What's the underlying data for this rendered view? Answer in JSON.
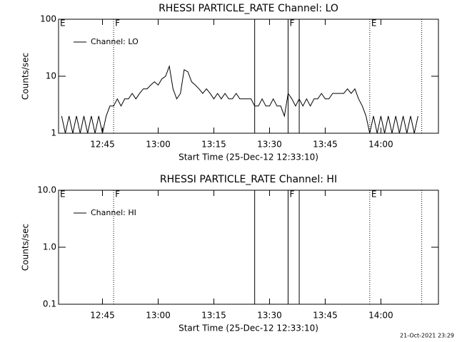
{
  "chart_data": [
    {
      "type": "line",
      "title": "RHESSI PARTICLE_RATE Channel: LO",
      "x_label": "Start Time (25-Dec-12 12:33:10)",
      "y_label": "Counts/sec",
      "log_y": true,
      "ylim": [
        1,
        100
      ],
      "yticks": [
        1,
        10,
        100
      ],
      "xlim": [
        "12:33:10",
        "14:15:30"
      ],
      "xticks": [
        "12:45",
        "13:00",
        "13:15",
        "13:30",
        "13:45",
        "14:00"
      ],
      "x": [
        "12:34",
        "12:35",
        "12:36",
        "12:37",
        "12:38",
        "12:39",
        "12:40",
        "12:41",
        "12:42",
        "12:43",
        "12:44",
        "12:45",
        "12:46",
        "12:47",
        "12:48",
        "12:49",
        "12:50",
        "12:51",
        "12:52",
        "12:53",
        "12:54",
        "12:55",
        "12:56",
        "12:57",
        "12:58",
        "12:59",
        "13:00",
        "13:01",
        "13:02",
        "13:03",
        "13:04",
        "13:05",
        "13:06",
        "13:07",
        "13:08",
        "13:09",
        "13:10",
        "13:11",
        "13:12",
        "13:13",
        "13:14",
        "13:15",
        "13:16",
        "13:17",
        "13:18",
        "13:19",
        "13:20",
        "13:21",
        "13:22",
        "13:23",
        "13:24",
        "13:25",
        "13:26",
        "13:27",
        "13:28",
        "13:29",
        "13:30",
        "13:31",
        "13:32",
        "13:33",
        "13:34",
        "13:35",
        "13:36",
        "13:37",
        "13:38",
        "13:39",
        "13:40",
        "13:41",
        "13:42",
        "13:43",
        "13:44",
        "13:45",
        "13:46",
        "13:47",
        "13:48",
        "13:49",
        "13:50",
        "13:51",
        "13:52",
        "13:53",
        "13:54",
        "13:55",
        "13:56",
        "13:57",
        "13:58",
        "13:59",
        "14:00",
        "14:01",
        "14:02",
        "14:03",
        "14:04",
        "14:05",
        "14:06",
        "14:07",
        "14:08",
        "14:09",
        "14:10"
      ],
      "series": [
        {
          "name": "Channel: LO",
          "color": "#000000",
          "values": [
            2,
            1,
            2,
            1,
            2,
            1,
            2,
            1,
            2,
            1,
            2,
            1,
            2,
            3,
            3,
            4,
            3,
            4,
            4,
            5,
            4,
            5,
            6,
            6,
            7,
            8,
            7,
            9,
            10,
            15,
            6,
            4,
            5,
            13,
            12,
            8,
            7,
            6,
            5,
            6,
            5,
            4,
            5,
            4,
            5,
            4,
            4,
            5,
            4,
            4,
            4,
            4,
            3,
            3,
            4,
            3,
            3,
            4,
            3,
            3,
            2,
            5,
            4,
            3,
            4,
            3,
            4,
            3,
            4,
            4,
            5,
            4,
            4,
            5,
            5,
            5,
            5,
            6,
            5,
            6,
            4,
            3,
            2,
            1,
            2,
            1,
            2,
            1,
            2,
            1,
            2,
            1,
            2,
            1,
            2,
            1,
            2
          ]
        }
      ],
      "solid_lines": [
        "13:26",
        "13:35",
        "13:38"
      ],
      "dotted_lines": [
        "12:48",
        "13:57",
        "14:11"
      ],
      "flags": [
        {
          "label": "E",
          "x": "12:33:10"
        },
        {
          "label": "F",
          "x": "12:48"
        },
        {
          "label": "F",
          "x": "13:35"
        },
        {
          "label": "E",
          "x": "13:57"
        }
      ]
    },
    {
      "type": "line",
      "title": "RHESSI PARTICLE_RATE Channel: HI",
      "x_label": "Start Time (25-Dec-12 12:33:10)",
      "y_label": "Counts/sec",
      "log_y": true,
      "ylim": [
        0.1,
        10
      ],
      "yticks": [
        0.1,
        {
          "value": 1,
          "label": "1.0"
        },
        {
          "value": 10,
          "label": "10.0"
        }
      ],
      "xlim": [
        "12:33:10",
        "14:15:30"
      ],
      "xticks": [
        "12:45",
        "13:00",
        "13:15",
        "13:30",
        "13:45",
        "14:00"
      ],
      "x": [],
      "series": [
        {
          "name": "Channel: HI",
          "color": "#000000",
          "values": []
        }
      ],
      "solid_lines": [
        "13:26",
        "13:35",
        "13:38"
      ],
      "dotted_lines": [
        "12:48",
        "13:57",
        "14:11"
      ],
      "flags": [
        {
          "label": "E",
          "x": "12:33:10"
        },
        {
          "label": "F",
          "x": "12:48"
        },
        {
          "label": "F",
          "x": "13:35"
        },
        {
          "label": "E",
          "x": "13:57"
        }
      ]
    }
  ],
  "footer": "21-Oct-2021 23:29"
}
